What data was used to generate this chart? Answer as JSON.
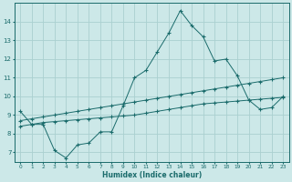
{
  "xlabel": "Humidex (Indice chaleur)",
  "bg_color": "#cce8e8",
  "grid_color": "#aad0d0",
  "line_color": "#1a6b6b",
  "xlim": [
    -0.5,
    23.5
  ],
  "ylim": [
    6.5,
    15.0
  ],
  "xticks": [
    0,
    1,
    2,
    3,
    4,
    5,
    6,
    7,
    8,
    9,
    10,
    11,
    12,
    13,
    14,
    15,
    16,
    17,
    18,
    19,
    20,
    21,
    22,
    23
  ],
  "yticks": [
    7,
    8,
    9,
    10,
    11,
    12,
    13,
    14
  ],
  "line1_x": [
    0,
    1,
    2,
    3,
    4,
    5,
    6,
    7,
    8,
    9,
    10,
    11,
    12,
    13,
    14,
    15,
    16,
    17,
    18,
    19,
    20,
    21,
    22,
    23
  ],
  "line1_y": [
    9.2,
    8.5,
    8.5,
    7.1,
    6.7,
    7.4,
    7.5,
    8.1,
    8.1,
    9.5,
    11.0,
    11.4,
    12.4,
    13.4,
    14.6,
    13.8,
    13.2,
    11.9,
    12.0,
    11.1,
    9.8,
    9.3,
    9.4,
    10.0
  ],
  "line2_x": [
    0,
    1,
    2,
    3,
    4,
    5,
    6,
    7,
    8,
    9,
    10,
    11,
    12,
    13,
    14,
    15,
    16,
    17,
    18,
    19,
    20,
    21,
    22,
    23
  ],
  "line2_y": [
    8.7,
    8.8,
    8.9,
    9.0,
    9.1,
    9.2,
    9.3,
    9.4,
    9.5,
    9.6,
    9.7,
    9.8,
    9.9,
    10.0,
    10.1,
    10.2,
    10.3,
    10.4,
    10.5,
    10.6,
    10.7,
    10.8,
    10.9,
    11.0
  ],
  "line3_x": [
    0,
    1,
    2,
    3,
    4,
    5,
    6,
    7,
    8,
    9,
    10,
    11,
    12,
    13,
    14,
    15,
    16,
    17,
    18,
    19,
    20,
    21,
    22,
    23
  ],
  "line3_y": [
    8.4,
    8.5,
    8.6,
    8.65,
    8.7,
    8.75,
    8.8,
    8.85,
    8.9,
    8.95,
    9.0,
    9.1,
    9.2,
    9.3,
    9.4,
    9.5,
    9.6,
    9.65,
    9.7,
    9.75,
    9.8,
    9.85,
    9.9,
    9.95
  ]
}
